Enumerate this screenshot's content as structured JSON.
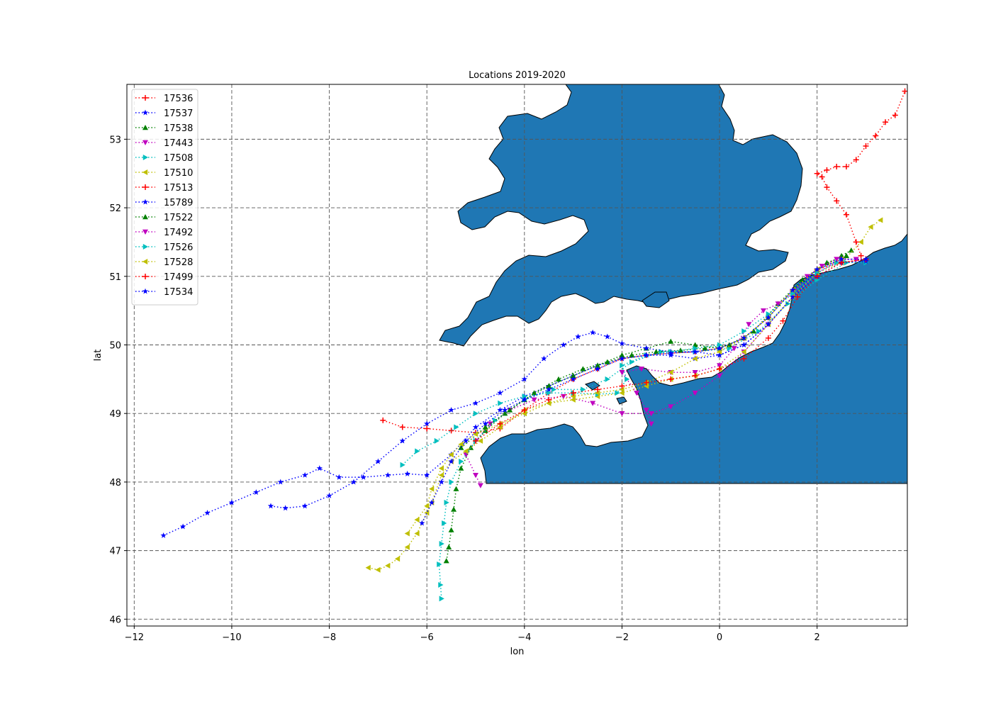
{
  "chart_data": {
    "type": "scatter",
    "title": "Locations 2019-2020",
    "xlabel": "lon",
    "ylabel": "lat",
    "xlim": [
      -12.15,
      3.85
    ],
    "ylim": [
      45.9,
      53.8
    ],
    "xticks": [
      -12,
      -10,
      -8,
      -6,
      -4,
      -2,
      0,
      2
    ],
    "yticks": [
      46,
      47,
      48,
      49,
      50,
      51,
      52,
      53
    ],
    "grid": true,
    "legend_position": "upper-left",
    "land_color": "#1f77b4",
    "land_note": "Map polygons: Great Britain (Wales, SW England, England), Isle of Wight, Channel Islands, France (Brittany, Normandy, Cotentin), Belgium/Netherlands coast. Mask cutoff at lat 48.",
    "series": [
      {
        "name": "17536",
        "color": "#ff0000",
        "marker": "plus",
        "x": [
          -6.9,
          -6.5,
          -6.0,
          -5.5,
          -5.0,
          -4.5,
          -4.0,
          -3.5,
          -3.0,
          -2.5,
          -2.0,
          -1.5,
          -1.0,
          -0.5,
          0.0,
          0.5,
          1.0,
          1.5,
          2.0,
          2.5,
          3.0
        ],
        "y": [
          48.9,
          48.8,
          48.78,
          48.75,
          48.72,
          48.78,
          49.05,
          49.3,
          49.5,
          49.65,
          49.8,
          49.85,
          49.88,
          49.9,
          49.95,
          50.1,
          50.4,
          50.8,
          51.1,
          51.2,
          51.25
        ]
      },
      {
        "name": "17537",
        "color": "#0000ff",
        "marker": "star",
        "x": [
          -11.4,
          -11.0,
          -10.5,
          -10.0,
          -9.5,
          -9.0,
          -8.5,
          -8.2,
          -7.8,
          -7.3,
          -6.8,
          -6.4,
          -6.0,
          -5.5,
          -5.0,
          -4.5,
          -4.0,
          -3.5,
          -3.0,
          -2.5,
          -2.0,
          -1.5,
          -1.0,
          -0.5,
          0.0,
          0.5,
          1.0,
          1.5,
          2.0,
          2.5
        ],
        "y": [
          47.22,
          47.35,
          47.55,
          47.7,
          47.85,
          48.0,
          48.1,
          48.2,
          48.07,
          48.07,
          48.1,
          48.12,
          48.1,
          48.4,
          48.8,
          49.05,
          49.25,
          49.4,
          49.55,
          49.7,
          49.8,
          49.85,
          49.85,
          49.8,
          49.85,
          50.0,
          50.3,
          50.7,
          51.1,
          51.25
        ]
      },
      {
        "name": "17538",
        "color": "#008000",
        "marker": "triangle-up",
        "x": [
          -5.6,
          -5.55,
          -5.5,
          -5.45,
          -5.4,
          -5.3,
          -5.1,
          -4.8,
          -4.4,
          -4.0,
          -3.5,
          -3.0,
          -2.5,
          -2.0,
          -1.5,
          -1.0,
          -0.5,
          0.0,
          0.5,
          1.0,
          1.5,
          2.0,
          2.5,
          2.7
        ],
        "y": [
          46.85,
          47.05,
          47.3,
          47.6,
          47.9,
          48.2,
          48.5,
          48.75,
          49.0,
          49.2,
          49.4,
          49.55,
          49.7,
          49.85,
          49.95,
          50.05,
          50.0,
          49.95,
          50.1,
          50.4,
          50.8,
          51.1,
          51.3,
          51.38
        ]
      },
      {
        "name": "17443",
        "color": "#bf00bf",
        "marker": "triangle-down",
        "x": [
          -4.9,
          -5.0,
          -5.2,
          -5.0,
          -4.7,
          -4.3,
          -3.8,
          -3.2,
          -2.6,
          -2.0,
          -1.4,
          -1.0,
          -0.5,
          0.0,
          0.5,
          1.0,
          1.5,
          2.0,
          2.5,
          2.8
        ],
        "y": [
          47.95,
          48.1,
          48.4,
          48.6,
          48.85,
          49.05,
          49.2,
          49.25,
          49.15,
          49.0,
          49.0,
          49.1,
          49.3,
          49.55,
          49.9,
          50.3,
          50.7,
          51.05,
          51.25,
          51.25
        ]
      },
      {
        "name": "17508",
        "color": "#00bfbf",
        "marker": "triangle-right",
        "x": [
          -5.7,
          -5.72,
          -5.75,
          -5.7,
          -5.65,
          -5.6,
          -5.5,
          -5.3,
          -5.0,
          -4.6,
          -4.0,
          -3.4,
          -2.8,
          -2.3,
          -1.8,
          -1.2,
          -0.5,
          0.2,
          0.8,
          1.4,
          2.0,
          2.6,
          3.0
        ],
        "y": [
          46.3,
          46.5,
          46.8,
          47.1,
          47.4,
          47.7,
          48.0,
          48.3,
          48.6,
          48.9,
          49.2,
          49.35,
          49.35,
          49.5,
          49.75,
          49.9,
          49.9,
          49.95,
          50.2,
          50.6,
          50.95,
          51.2,
          51.2
        ]
      },
      {
        "name": "17510",
        "color": "#bfbf00",
        "marker": "triangle-left",
        "x": [
          -7.2,
          -7.0,
          -6.8,
          -6.6,
          -6.4,
          -6.2,
          -6.0,
          -5.9,
          -5.7,
          -5.5,
          -5.2,
          -4.9,
          -4.5,
          -4.0,
          -3.5,
          -3.0,
          -2.5,
          -2.0,
          -1.5,
          -1.0,
          -0.5,
          0.0,
          0.5,
          1.0,
          1.5,
          2.0,
          2.5,
          2.9,
          3.1,
          3.3
        ],
        "y": [
          46.75,
          46.72,
          46.78,
          46.88,
          47.05,
          47.25,
          47.55,
          47.7,
          48.1,
          48.3,
          48.45,
          48.6,
          48.8,
          49.05,
          49.15,
          49.2,
          49.25,
          49.3,
          49.4,
          49.5,
          49.55,
          49.65,
          49.9,
          50.3,
          50.7,
          51.05,
          51.2,
          51.5,
          51.72,
          51.82
        ]
      },
      {
        "name": "17513",
        "color": "#ff0000",
        "marker": "plus",
        "x": [
          2.9,
          2.8,
          2.6,
          2.4,
          2.2,
          2.1,
          2.0,
          2.2,
          2.4,
          2.6,
          2.8,
          3.0,
          3.2,
          3.4,
          3.6,
          3.8
        ],
        "y": [
          51.3,
          51.5,
          51.9,
          52.1,
          52.3,
          52.45,
          52.5,
          52.55,
          52.6,
          52.6,
          52.7,
          52.9,
          53.05,
          53.25,
          53.35,
          53.7
        ]
      },
      {
        "name": "15789",
        "color": "#0000ff",
        "marker": "star",
        "x": [
          -9.2,
          -8.9,
          -8.5,
          -8.0,
          -7.5,
          -7.0,
          -6.5,
          -6.0,
          -5.5,
          -5.0,
          -4.5,
          -4.0,
          -3.6,
          -3.2,
          -2.9,
          -2.6,
          -2.3,
          -2.0,
          -1.5,
          -1.0,
          -0.5,
          0.0,
          0.5,
          1.0,
          1.5,
          2.0,
          2.5,
          3.0
        ],
        "y": [
          47.65,
          47.62,
          47.65,
          47.8,
          48.0,
          48.3,
          48.6,
          48.85,
          49.05,
          49.15,
          49.3,
          49.5,
          49.8,
          50.0,
          50.12,
          50.18,
          50.12,
          50.02,
          49.95,
          49.9,
          49.9,
          49.85,
          50.0,
          50.3,
          50.7,
          51.0,
          51.2,
          51.22
        ]
      },
      {
        "name": "17522",
        "color": "#008000",
        "marker": "triangle-up",
        "x": [
          -5.3,
          -4.8,
          -4.3,
          -3.8,
          -3.3,
          -2.8,
          -2.3,
          -1.8,
          -1.3,
          -0.8,
          -0.3,
          0.2,
          0.7,
          1.2,
          1.7,
          2.2,
          2.6
        ],
        "y": [
          48.5,
          48.8,
          49.05,
          49.3,
          49.5,
          49.65,
          49.75,
          49.85,
          49.9,
          49.92,
          49.95,
          50.0,
          50.2,
          50.6,
          50.95,
          51.2,
          51.3
        ]
      },
      {
        "name": "17492",
        "color": "#bf00bf",
        "marker": "triangle-down",
        "x": [
          -1.4,
          -1.5,
          -1.7,
          -2.0,
          -1.6,
          -1.0,
          -0.5,
          0.0,
          0.3,
          0.6,
          0.9,
          1.2,
          1.5,
          1.8,
          2.1,
          2.4
        ],
        "y": [
          48.85,
          49.05,
          49.3,
          49.6,
          49.65,
          49.6,
          49.6,
          49.7,
          49.95,
          50.3,
          50.5,
          50.6,
          50.75,
          51.0,
          51.15,
          51.25
        ]
      },
      {
        "name": "17526",
        "color": "#00bfbf",
        "marker": "triangle-right",
        "x": [
          -6.5,
          -6.2,
          -5.8,
          -5.4,
          -5.0,
          -4.5,
          -4.0,
          -3.5,
          -3.0,
          -2.5,
          -2.1,
          -1.9,
          -2.0,
          -1.5,
          -1.0,
          -0.5,
          0.0,
          0.5,
          1.0,
          1.5,
          2.0,
          2.4
        ],
        "y": [
          48.25,
          48.45,
          48.6,
          48.8,
          49.0,
          49.15,
          49.25,
          49.3,
          49.3,
          49.28,
          49.3,
          49.5,
          49.7,
          49.85,
          49.9,
          49.95,
          50.0,
          50.2,
          50.45,
          50.75,
          51.05,
          51.2
        ]
      },
      {
        "name": "17528",
        "color": "#bfbf00",
        "marker": "triangle-left",
        "x": [
          -6.4,
          -6.2,
          -6.0,
          -5.9,
          -5.7,
          -5.5,
          -5.3,
          -5.0,
          -4.5,
          -4.0,
          -3.5,
          -3.0,
          -2.5,
          -2.0,
          -1.5,
          -1.0,
          -0.5,
          0.0,
          0.5,
          1.0,
          1.5,
          2.0,
          2.5
        ],
        "y": [
          47.25,
          47.45,
          47.65,
          47.9,
          48.2,
          48.4,
          48.55,
          48.7,
          48.85,
          49.0,
          49.15,
          49.25,
          49.3,
          49.35,
          49.45,
          49.6,
          49.8,
          49.9,
          50.1,
          50.4,
          50.8,
          51.1,
          51.25
        ]
      },
      {
        "name": "17499",
        "color": "#ff0000",
        "marker": "plus",
        "x": [
          -5.0,
          -4.5,
          -4.0,
          -3.5,
          -3.0,
          -2.5,
          -2.0,
          -1.5,
          -1.0,
          -0.5,
          0.0,
          0.5,
          1.0,
          1.3,
          1.6,
          2.0,
          2.5,
          3.0
        ],
        "y": [
          48.6,
          48.85,
          49.05,
          49.2,
          49.3,
          49.35,
          49.4,
          49.45,
          49.5,
          49.55,
          49.65,
          49.8,
          50.1,
          50.35,
          50.7,
          51.0,
          51.2,
          51.25
        ]
      },
      {
        "name": "17534",
        "color": "#0000ff",
        "marker": "star",
        "x": [
          -6.1,
          -5.9,
          -5.7,
          -5.5,
          -5.2,
          -4.8,
          -4.4,
          -4.0,
          -3.5,
          -3.0,
          -2.5,
          -2.0,
          -1.5,
          -1.0,
          -0.5,
          0.0,
          0.5,
          1.0,
          1.5,
          2.0,
          2.5,
          3.0
        ],
        "y": [
          47.4,
          47.7,
          48.0,
          48.3,
          48.6,
          48.85,
          49.05,
          49.2,
          49.35,
          49.5,
          49.65,
          49.8,
          49.85,
          49.88,
          49.9,
          49.95,
          50.1,
          50.4,
          50.8,
          51.1,
          51.25,
          51.25
        ]
      }
    ]
  }
}
